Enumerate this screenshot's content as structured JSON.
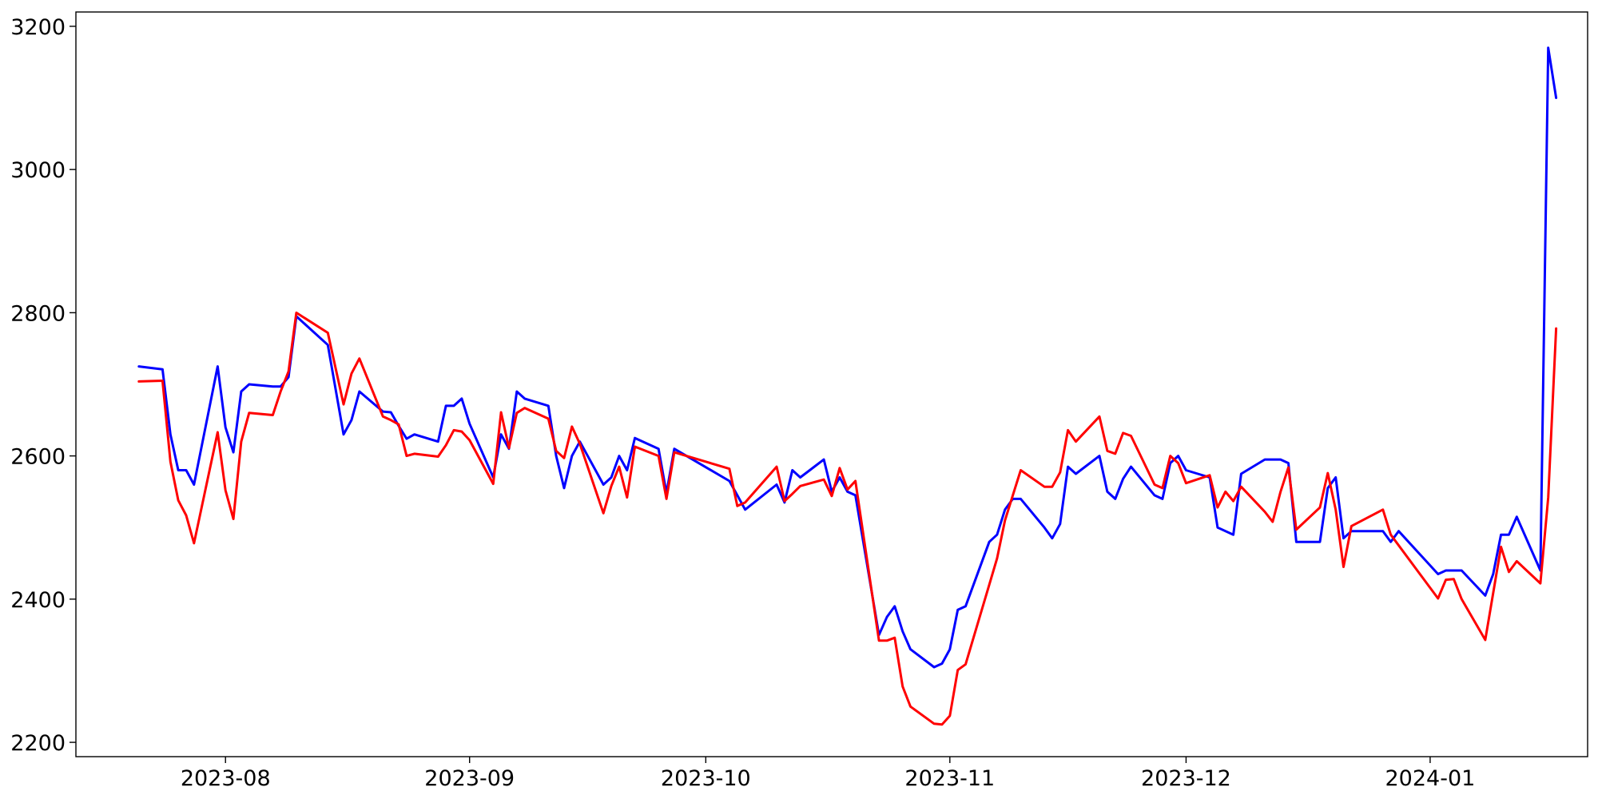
{
  "chart_data": {
    "type": "line",
    "title": "",
    "xlabel": "",
    "ylabel": "",
    "xlim": [
      "2023-07-13",
      "2024-01-21"
    ],
    "ylim": [
      2180,
      3220
    ],
    "grid": false,
    "x_ticks": [
      {
        "date": "2023-08-01",
        "label": "2023-08"
      },
      {
        "date": "2023-09-01",
        "label": "2023-09"
      },
      {
        "date": "2023-10-01",
        "label": "2023-10"
      },
      {
        "date": "2023-11-01",
        "label": "2023-11"
      },
      {
        "date": "2023-12-01",
        "label": "2023-12"
      },
      {
        "date": "2024-01-01",
        "label": "2024-01"
      }
    ],
    "y_ticks": [
      {
        "value": 2200,
        "label": "2200"
      },
      {
        "value": 2400,
        "label": "2400"
      },
      {
        "value": 2600,
        "label": "2600"
      },
      {
        "value": 2800,
        "label": "2800"
      },
      {
        "value": 3000,
        "label": "3000"
      },
      {
        "value": 3200,
        "label": "3200"
      }
    ],
    "series": [
      {
        "color": "#0000ff",
        "points": [
          [
            "2023-07-21",
            2725
          ],
          [
            "2023-07-24",
            2721
          ],
          [
            "2023-07-25",
            2630
          ],
          [
            "2023-07-26",
            2580
          ],
          [
            "2023-07-27",
            2580
          ],
          [
            "2023-07-28",
            2560
          ],
          [
            "2023-07-31",
            2725
          ],
          [
            "2023-08-01",
            2640
          ],
          [
            "2023-08-02",
            2605
          ],
          [
            "2023-08-03",
            2690
          ],
          [
            "2023-08-04",
            2700
          ],
          [
            "2023-08-07",
            2697
          ],
          [
            "2023-08-08",
            2697
          ],
          [
            "2023-08-09",
            2710
          ],
          [
            "2023-08-10",
            2795
          ],
          [
            "2023-08-14",
            2755
          ],
          [
            "2023-08-16",
            2630
          ],
          [
            "2023-08-17",
            2650
          ],
          [
            "2023-08-18",
            2690
          ],
          [
            "2023-08-21",
            2662
          ],
          [
            "2023-08-22",
            2661
          ],
          [
            "2023-08-23",
            2642
          ],
          [
            "2023-08-24",
            2624
          ],
          [
            "2023-08-25",
            2630
          ],
          [
            "2023-08-28",
            2620
          ],
          [
            "2023-08-29",
            2670
          ],
          [
            "2023-08-30",
            2670
          ],
          [
            "2023-08-31",
            2680
          ],
          [
            "2023-09-01",
            2645
          ],
          [
            "2023-09-04",
            2570
          ],
          [
            "2023-09-05",
            2630
          ],
          [
            "2023-09-06",
            2610
          ],
          [
            "2023-09-07",
            2690
          ],
          [
            "2023-09-08",
            2680
          ],
          [
            "2023-09-11",
            2670
          ],
          [
            "2023-09-12",
            2600
          ],
          [
            "2023-09-13",
            2555
          ],
          [
            "2023-09-14",
            2600
          ],
          [
            "2023-09-15",
            2620
          ],
          [
            "2023-09-18",
            2560
          ],
          [
            "2023-09-19",
            2570
          ],
          [
            "2023-09-20",
            2600
          ],
          [
            "2023-09-21",
            2580
          ],
          [
            "2023-09-22",
            2625
          ],
          [
            "2023-09-25",
            2610
          ],
          [
            "2023-09-26",
            2548
          ],
          [
            "2023-09-27",
            2610
          ],
          [
            "2023-10-04",
            2565
          ],
          [
            "2023-10-05",
            2545
          ],
          [
            "2023-10-06",
            2525
          ],
          [
            "2023-10-10",
            2560
          ],
          [
            "2023-10-11",
            2535
          ],
          [
            "2023-10-12",
            2580
          ],
          [
            "2023-10-13",
            2570
          ],
          [
            "2023-10-16",
            2595
          ],
          [
            "2023-10-17",
            2550
          ],
          [
            "2023-10-18",
            2570
          ],
          [
            "2023-10-19",
            2550
          ],
          [
            "2023-10-20",
            2545
          ],
          [
            "2023-10-23",
            2350
          ],
          [
            "2023-10-24",
            2375
          ],
          [
            "2023-10-25",
            2390
          ],
          [
            "2023-10-26",
            2355
          ],
          [
            "2023-10-27",
            2330
          ],
          [
            "2023-10-30",
            2305
          ],
          [
            "2023-10-31",
            2310
          ],
          [
            "2023-11-01",
            2330
          ],
          [
            "2023-11-02",
            2385
          ],
          [
            "2023-11-03",
            2390
          ],
          [
            "2023-11-06",
            2480
          ],
          [
            "2023-11-07",
            2490
          ],
          [
            "2023-11-08",
            2525
          ],
          [
            "2023-11-09",
            2540
          ],
          [
            "2023-11-10",
            2540
          ],
          [
            "2023-11-13",
            2500
          ],
          [
            "2023-11-14",
            2485
          ],
          [
            "2023-11-15",
            2505
          ],
          [
            "2023-11-16",
            2585
          ],
          [
            "2023-11-17",
            2575
          ],
          [
            "2023-11-20",
            2600
          ],
          [
            "2023-11-21",
            2550
          ],
          [
            "2023-11-22",
            2540
          ],
          [
            "2023-11-23",
            2568
          ],
          [
            "2023-11-24",
            2585
          ],
          [
            "2023-11-27",
            2545
          ],
          [
            "2023-11-28",
            2540
          ],
          [
            "2023-11-29",
            2590
          ],
          [
            "2023-11-30",
            2600
          ],
          [
            "2023-12-01",
            2580
          ],
          [
            "2023-12-04",
            2570
          ],
          [
            "2023-12-05",
            2500
          ],
          [
            "2023-12-07",
            2490
          ],
          [
            "2023-12-08",
            2575
          ],
          [
            "2023-12-11",
            2595
          ],
          [
            "2023-12-13",
            2595
          ],
          [
            "2023-12-14",
            2590
          ],
          [
            "2023-12-15",
            2480
          ],
          [
            "2023-12-18",
            2480
          ],
          [
            "2023-12-19",
            2555
          ],
          [
            "2023-12-20",
            2570
          ],
          [
            "2023-12-21",
            2485
          ],
          [
            "2023-12-22",
            2495
          ],
          [
            "2023-12-26",
            2495
          ],
          [
            "2023-12-27",
            2480
          ],
          [
            "2023-12-28",
            2495
          ],
          [
            "2024-01-02",
            2435
          ],
          [
            "2024-01-03",
            2440
          ],
          [
            "2024-01-05",
            2440
          ],
          [
            "2024-01-08",
            2405
          ],
          [
            "2024-01-09",
            2435
          ],
          [
            "2024-01-10",
            2490
          ],
          [
            "2024-01-11",
            2490
          ],
          [
            "2024-01-12",
            2515
          ],
          [
            "2024-01-15",
            2440
          ],
          [
            "2024-01-16",
            3170
          ],
          [
            "2024-01-17",
            3100
          ]
        ]
      },
      {
        "color": "#ff0000",
        "points": [
          [
            "2023-07-21",
            2704
          ],
          [
            "2023-07-24",
            2705
          ],
          [
            "2023-07-25",
            2592
          ],
          [
            "2023-07-26",
            2538
          ],
          [
            "2023-07-27",
            2517
          ],
          [
            "2023-07-28",
            2478
          ],
          [
            "2023-07-31",
            2633
          ],
          [
            "2023-08-01",
            2552
          ],
          [
            "2023-08-02",
            2512
          ],
          [
            "2023-08-03",
            2620
          ],
          [
            "2023-08-04",
            2660
          ],
          [
            "2023-08-07",
            2657
          ],
          [
            "2023-08-08",
            2690
          ],
          [
            "2023-08-09",
            2718
          ],
          [
            "2023-08-10",
            2800
          ],
          [
            "2023-08-14",
            2772
          ],
          [
            "2023-08-16",
            2672
          ],
          [
            "2023-08-17",
            2715
          ],
          [
            "2023-08-18",
            2736
          ],
          [
            "2023-08-21",
            2655
          ],
          [
            "2023-08-22",
            2650
          ],
          [
            "2023-08-23",
            2644
          ],
          [
            "2023-08-24",
            2600
          ],
          [
            "2023-08-25",
            2603
          ],
          [
            "2023-08-28",
            2599
          ],
          [
            "2023-08-29",
            2615
          ],
          [
            "2023-08-30",
            2636
          ],
          [
            "2023-08-31",
            2634
          ],
          [
            "2023-09-01",
            2622
          ],
          [
            "2023-09-04",
            2561
          ],
          [
            "2023-09-05",
            2661
          ],
          [
            "2023-09-06",
            2611
          ],
          [
            "2023-09-07",
            2660
          ],
          [
            "2023-09-08",
            2667
          ],
          [
            "2023-09-11",
            2652
          ],
          [
            "2023-09-12",
            2607
          ],
          [
            "2023-09-13",
            2597
          ],
          [
            "2023-09-14",
            2641
          ],
          [
            "2023-09-15",
            2617
          ],
          [
            "2023-09-18",
            2520
          ],
          [
            "2023-09-19",
            2558
          ],
          [
            "2023-09-20",
            2585
          ],
          [
            "2023-09-21",
            2542
          ],
          [
            "2023-09-22",
            2613
          ],
          [
            "2023-09-25",
            2600
          ],
          [
            "2023-09-26",
            2540
          ],
          [
            "2023-09-27",
            2605
          ],
          [
            "2023-10-04",
            2582
          ],
          [
            "2023-10-05",
            2530
          ],
          [
            "2023-10-06",
            2535
          ],
          [
            "2023-10-10",
            2585
          ],
          [
            "2023-10-11",
            2537
          ],
          [
            "2023-10-12",
            2547
          ],
          [
            "2023-10-13",
            2558
          ],
          [
            "2023-10-16",
            2567
          ],
          [
            "2023-10-17",
            2544
          ],
          [
            "2023-10-18",
            2583
          ],
          [
            "2023-10-19",
            2553
          ],
          [
            "2023-10-20",
            2565
          ],
          [
            "2023-10-23",
            2342
          ],
          [
            "2023-10-24",
            2342
          ],
          [
            "2023-10-25",
            2346
          ],
          [
            "2023-10-26",
            2278
          ],
          [
            "2023-10-27",
            2250
          ],
          [
            "2023-10-30",
            2226
          ],
          [
            "2023-10-31",
            2225
          ],
          [
            "2023-11-01",
            2237
          ],
          [
            "2023-11-02",
            2301
          ],
          [
            "2023-11-03",
            2309
          ],
          [
            "2023-11-06",
            2420
          ],
          [
            "2023-11-07",
            2457
          ],
          [
            "2023-11-08",
            2510
          ],
          [
            "2023-11-09",
            2545
          ],
          [
            "2023-11-10",
            2580
          ],
          [
            "2023-11-13",
            2557
          ],
          [
            "2023-11-14",
            2557
          ],
          [
            "2023-11-15",
            2577
          ],
          [
            "2023-11-16",
            2636
          ],
          [
            "2023-11-17",
            2620
          ],
          [
            "2023-11-20",
            2655
          ],
          [
            "2023-11-21",
            2607
          ],
          [
            "2023-11-22",
            2603
          ],
          [
            "2023-11-23",
            2632
          ],
          [
            "2023-11-24",
            2628
          ],
          [
            "2023-11-27",
            2560
          ],
          [
            "2023-11-28",
            2555
          ],
          [
            "2023-11-29",
            2600
          ],
          [
            "2023-11-30",
            2590
          ],
          [
            "2023-12-01",
            2562
          ],
          [
            "2023-12-04",
            2573
          ],
          [
            "2023-12-05",
            2528
          ],
          [
            "2023-12-06",
            2550
          ],
          [
            "2023-12-07",
            2537
          ],
          [
            "2023-12-08",
            2557
          ],
          [
            "2023-12-11",
            2522
          ],
          [
            "2023-12-12",
            2508
          ],
          [
            "2023-12-13",
            2550
          ],
          [
            "2023-12-14",
            2584
          ],
          [
            "2023-12-15",
            2497
          ],
          [
            "2023-12-18",
            2528
          ],
          [
            "2023-12-19",
            2576
          ],
          [
            "2023-12-20",
            2525
          ],
          [
            "2023-12-21",
            2445
          ],
          [
            "2023-12-22",
            2502
          ],
          [
            "2023-12-26",
            2525
          ],
          [
            "2023-12-27",
            2490
          ],
          [
            "2024-01-02",
            2401
          ],
          [
            "2024-01-03",
            2427
          ],
          [
            "2024-01-04",
            2428
          ],
          [
            "2024-01-05",
            2400
          ],
          [
            "2024-01-08",
            2343
          ],
          [
            "2024-01-10",
            2473
          ],
          [
            "2024-01-11",
            2438
          ],
          [
            "2024-01-12",
            2453
          ],
          [
            "2024-01-15",
            2422
          ],
          [
            "2024-01-16",
            2542
          ],
          [
            "2024-01-17",
            2778
          ]
        ]
      }
    ]
  }
}
